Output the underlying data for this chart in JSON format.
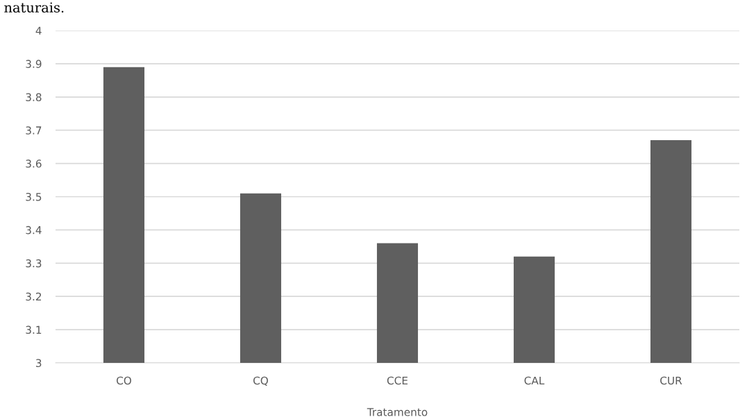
{
  "chart_data": {
    "type": "bar",
    "xlabel": "Tratamento",
    "categories": [
      "CO",
      "CQ",
      "CCE",
      "CAL",
      "CUR"
    ],
    "values": [
      3.89,
      3.51,
      3.36,
      3.32,
      3.67
    ],
    "color": "#5f5f5f",
    "ylim": [
      3,
      4
    ],
    "yticks": [
      3,
      3.1,
      3.2,
      3.3,
      3.4,
      3.5,
      3.6,
      3.7,
      3.8,
      3.9,
      4
    ],
    "grid": "y",
    "annotations": [
      "naturais."
    ]
  }
}
